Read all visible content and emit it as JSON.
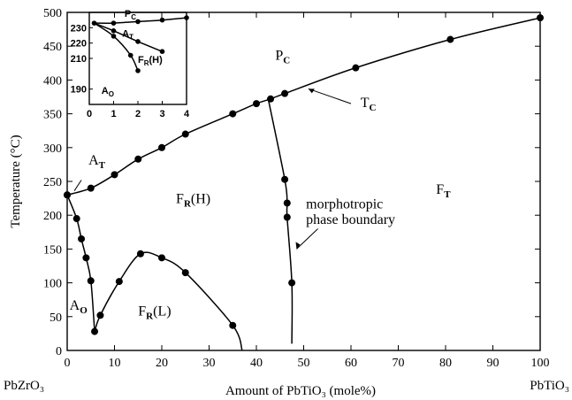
{
  "chart_data": {
    "type": "scatter",
    "xlabel": "Amount of PbTiO₃ (mole%)",
    "ylabel": "Temperature (°C)",
    "xlim": [
      0,
      100
    ],
    "ylim": [
      0,
      500
    ],
    "x_ticks": [
      "0",
      "10",
      "20",
      "30",
      "40",
      "50",
      "60",
      "70",
      "80",
      "90",
      "100"
    ],
    "y_ticks": [
      "0",
      "50",
      "100",
      "150",
      "200",
      "250",
      "300",
      "350",
      "400",
      "450",
      "500"
    ],
    "end_labels": {
      "left": "PbZrO₃",
      "right": "PbTiO₃"
    },
    "regions": {
      "pc": {
        "main": "P",
        "sub": "C"
      },
      "fr_h": {
        "main": "F",
        "sub": "R",
        "suffix": "(H)"
      },
      "fr_l": {
        "main": "F",
        "sub": "R",
        "suffix": "(L)"
      },
      "ft": {
        "main": "F",
        "sub": "T"
      },
      "at": {
        "main": "A",
        "sub": "T"
      },
      "ao": {
        "main": "A",
        "sub": "O"
      }
    },
    "annotations": {
      "tc": {
        "main": "T",
        "sub": "C"
      },
      "mpb": [
        "morphotropic",
        "phase boundary"
      ]
    },
    "series": [
      {
        "values": [
          [
            0,
            230
          ],
          [
            5,
            240
          ],
          [
            10,
            260
          ],
          [
            15,
            283
          ],
          [
            20,
            300
          ],
          [
            25,
            320
          ],
          [
            35,
            350
          ],
          [
            40,
            365
          ],
          [
            43,
            372
          ],
          [
            46,
            380
          ],
          [
            61,
            418
          ],
          [
            81,
            460
          ],
          [
            100,
            492
          ]
        ]
      },
      {
        "values": [
          [
            0,
            230
          ],
          [
            2,
            195
          ],
          [
            3,
            165
          ],
          [
            4,
            137
          ],
          [
            5,
            103
          ],
          [
            5.8,
            28
          ]
        ]
      },
      {
        "values": [
          [
            7,
            52
          ],
          [
            11,
            102
          ],
          [
            15.5,
            143
          ],
          [
            20,
            137
          ],
          [
            25,
            115
          ],
          [
            35,
            37
          ]
        ]
      },
      {
        "values": [
          [
            46,
            253
          ],
          [
            46.5,
            218
          ],
          [
            46.5,
            197
          ],
          [
            47.5,
            100
          ]
        ]
      }
    ],
    "inset": {
      "xlim": [
        0,
        4
      ],
      "ylim": [
        180,
        240
      ],
      "x_ticks": [
        "0",
        "1",
        "2",
        "3",
        "4"
      ],
      "y_ticks": [
        {
          "v": 230,
          "label": "230"
        },
        {
          "v": 220,
          "label": "220"
        },
        {
          "v": 210,
          "label": "210"
        },
        {
          "v": 190,
          "label": "190"
        }
      ],
      "regions": {
        "pc": {
          "main": "P",
          "sub": "C"
        },
        "at": {
          "main": "A",
          "sub": "T"
        },
        "fr_h": {
          "main": "F",
          "sub": "R",
          "suffix": "(H)"
        },
        "ao": {
          "main": "A",
          "sub": "O"
        }
      },
      "series": [
        {
          "values": [
            [
              0.2,
              233
            ],
            [
              1,
              233
            ],
            [
              2,
              234
            ],
            [
              3,
              235
            ],
            [
              4,
              236.5
            ]
          ]
        },
        {
          "values": [
            [
              0.2,
              233
            ],
            [
              1,
              228
            ],
            [
              2,
              221
            ],
            [
              3,
              214.5
            ]
          ]
        },
        {
          "values": [
            [
              0.2,
              233
            ],
            [
              1,
              224.5
            ],
            [
              1.7,
              212
            ],
            [
              2,
              202
            ]
          ]
        }
      ]
    }
  }
}
